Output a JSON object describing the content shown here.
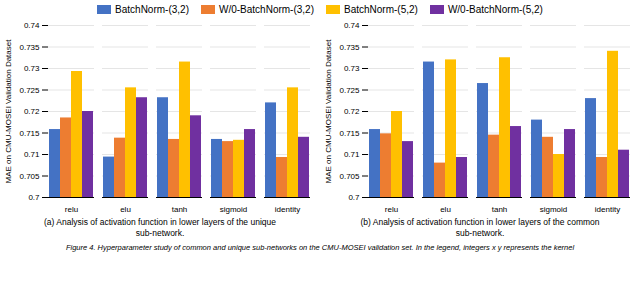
{
  "chart_data": [
    {
      "type": "bar",
      "subtitle": [
        "(a) Analysis of activation function in lower layers of the unique",
        "sub-network."
      ],
      "categories": [
        "relu",
        "elu",
        "tanh",
        "sigmoid",
        "identity"
      ],
      "series": [
        {
          "name": "BatchNorm-(3,2)",
          "color": "#4472C4",
          "values": [
            0.7158,
            0.7094,
            0.7232,
            0.7135,
            0.722
          ]
        },
        {
          "name": "W/0-BatchNorm-(3,2)",
          "color": "#ED7D31",
          "values": [
            0.7185,
            0.7138,
            0.7135,
            0.713,
            0.7093
          ]
        },
        {
          "name": "BatchNorm-(5,2)",
          "color": "#FFC000",
          "values": [
            0.7293,
            0.7255,
            0.7315,
            0.7133,
            0.7255
          ]
        },
        {
          "name": "W/0-BatchNorm-(5,2)",
          "color": "#7030A0",
          "values": [
            0.72,
            0.7232,
            0.719,
            0.7158,
            0.714
          ]
        }
      ],
      "ylim": [
        0.7,
        0.74
      ],
      "yticks": [
        0.7,
        0.705,
        0.71,
        0.715,
        0.72,
        0.725,
        0.73,
        0.735,
        0.74
      ],
      "ylabel": "MAE on CMU-MOSEI Validation Dataset",
      "grid": true,
      "legend": "top"
    },
    {
      "type": "bar",
      "subtitle": [
        "(b) Analysis of activation function in lower layers of the common",
        "sub-network."
      ],
      "categories": [
        "relu",
        "elu",
        "tanh",
        "sigmoid",
        "identity"
      ],
      "series": [
        {
          "name": "BatchNorm-(3,2)",
          "color": "#4472C4",
          "values": [
            0.7158,
            0.7315,
            0.7265,
            0.718,
            0.723
          ]
        },
        {
          "name": "W/0-BatchNorm-(3,2)",
          "color": "#ED7D31",
          "values": [
            0.7148,
            0.708,
            0.7145,
            0.714,
            0.7093
          ]
        },
        {
          "name": "BatchNorm-(5,2)",
          "color": "#FFC000",
          "values": [
            0.72,
            0.732,
            0.7325,
            0.71,
            0.734
          ]
        },
        {
          "name": "W/0-BatchNorm-(5,2)",
          "color": "#7030A0",
          "values": [
            0.713,
            0.7093,
            0.7165,
            0.7158,
            0.711
          ]
        }
      ],
      "ylim": [
        0.7,
        0.74
      ],
      "yticks": [
        0.7,
        0.705,
        0.71,
        0.715,
        0.72,
        0.725,
        0.73,
        0.735,
        0.74
      ],
      "ylabel": "MAE on CMU-MOSEI Validation Dataset",
      "grid": true,
      "legend": "top"
    }
  ],
  "caption": "Figure 4. Hyperparameter study of common and unique sub-networks on the CMU-MOSEI validation set. In the legend, integers x y represents the kernel"
}
